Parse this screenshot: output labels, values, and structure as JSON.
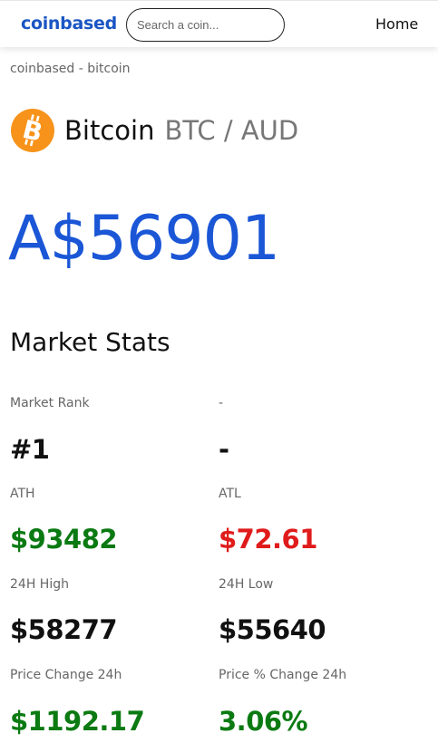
{
  "navbar": {
    "brand": "coinbased",
    "search_placeholder": "Search a coin...",
    "home_link": "Home"
  },
  "breadcrumb": "coinbased - bitcoin",
  "coin": {
    "name": "Bitcoin",
    "pair": "BTC / AUD",
    "logo_icon": "bitcoin-icon",
    "logo_color": "#f7931a"
  },
  "price": "A$56901",
  "colors": {
    "brand": "#1a56c4",
    "price": "#1a56d6",
    "positive": "#0b7a12",
    "negative": "#e01b1b"
  },
  "market_stats": {
    "title": "Market Stats",
    "rows": [
      {
        "left": {
          "label": "Market Rank",
          "value": "#1"
        },
        "right": {
          "label": "-",
          "value": "-"
        }
      },
      {
        "left": {
          "label": "ATH",
          "value": "$93482"
        },
        "right": {
          "label": "ATL",
          "value": "$72.61"
        }
      },
      {
        "left": {
          "label": "24H High",
          "value": "$58277"
        },
        "right": {
          "label": "24H Low",
          "value": "$55640"
        }
      },
      {
        "left": {
          "label": "Price Change 24h",
          "value": "$1192.17"
        },
        "right": {
          "label": "Price % Change 24h",
          "value": "3.06%"
        }
      }
    ]
  }
}
